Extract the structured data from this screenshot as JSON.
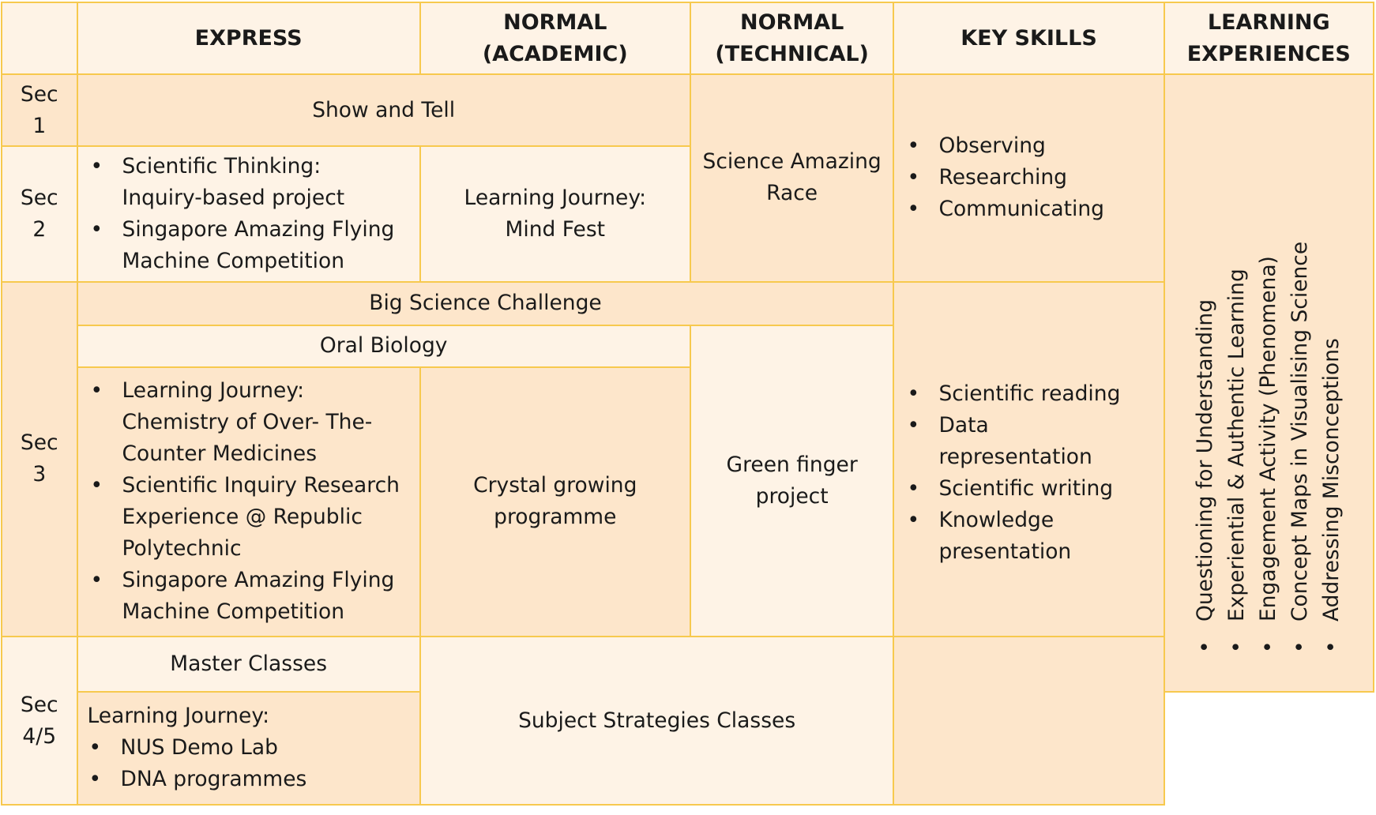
{
  "headers": {
    "corner": "",
    "express": "EXPRESS",
    "normal_academic": [
      "NORMAL",
      "(ACADEMIC)"
    ],
    "normal_technical": [
      "NORMAL",
      "(TECHNICAL)"
    ],
    "key_skills": "KEY SKILLS",
    "learning_experiences": [
      "LEARNING",
      "EXPERIENCES"
    ]
  },
  "levels": {
    "sec1": [
      "Sec",
      "1"
    ],
    "sec2": [
      "Sec",
      "2"
    ],
    "sec3": [
      "Sec",
      "3"
    ],
    "sec45": [
      "Sec",
      "4/5"
    ]
  },
  "cells": {
    "show_and_tell": "Show and Tell",
    "science_amazing_race": [
      "Science Amazing",
      "Race"
    ],
    "sec2_express_items": [
      [
        "Scientific Thinking:",
        "Inquiry-based project"
      ],
      [
        "Singapore Amazing Flying",
        "Machine Competition"
      ]
    ],
    "learning_journey_mind_fest": [
      "Learning Journey:",
      "Mind Fest"
    ],
    "big_science_challenge": "Big Science Challenge",
    "oral_biology": "Oral Biology",
    "sec3_express_items": [
      [
        "Learning Journey:",
        "Chemistry of Over- The-",
        "Counter Medicines"
      ],
      [
        "Scientific Inquiry Research",
        "Experience @ Republic",
        "Polytechnic"
      ],
      [
        "Singapore Amazing Flying",
        "Machine Competition"
      ]
    ],
    "crystal_growing": [
      "Crystal growing",
      "programme"
    ],
    "green_finger": [
      "Green finger",
      "project"
    ],
    "master_classes": "Master Classes",
    "sec45_lj_lead": "Learning Journey:",
    "sec45_lj_items": [
      "NUS Demo Lab",
      "DNA programmes"
    ],
    "subject_strategies": "Subject Strategies Classes"
  },
  "key_skills": {
    "lower": [
      "Observing",
      "Researching",
      "Communicating"
    ],
    "upper": [
      [
        "Scientific reading"
      ],
      [
        "Data",
        "representation"
      ],
      [
        "Scientific writing"
      ],
      [
        "Knowledge",
        "presentation"
      ]
    ]
  },
  "learning_experiences": [
    "Questioning for Understanding",
    "Experiential & Authentic Learning",
    "Engagement Activity (Phenomena)",
    "Concept Maps in Visualising Science",
    "Addressing Misconceptions"
  ],
  "colors": {
    "border": "#f7c94e",
    "cell_light": "#fef3e6",
    "cell_dark": "#fde6cb"
  }
}
